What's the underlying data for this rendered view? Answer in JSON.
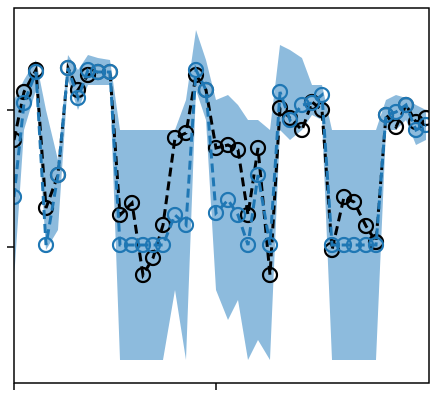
{
  "chart_data": {
    "type": "line",
    "x": [
      0,
      10,
      22,
      32,
      44,
      54,
      64,
      74,
      84,
      96,
      106,
      118,
      129,
      139,
      149,
      161,
      172,
      182,
      192,
      202,
      214,
      224,
      234,
      244,
      256,
      266,
      276,
      288,
      298,
      308,
      318,
      330,
      340,
      352,
      362,
      372,
      382,
      392,
      402,
      412
    ],
    "band": {
      "color": "#8dbbdd",
      "upper": [
        147,
        167,
        187,
        137,
        87,
        192,
        177,
        192,
        189,
        187,
        117,
        117,
        117,
        117,
        117,
        117,
        147,
        217,
        187,
        147,
        152,
        142,
        127,
        127,
        117,
        202,
        197,
        189,
        162,
        162,
        117,
        117,
        117,
        117,
        117,
        147,
        152,
        149,
        142,
        137
      ],
      "lower": [
        -33,
        117,
        157,
        -3,
        17,
        167,
        137,
        162,
        162,
        162,
        -113,
        -113,
        -113,
        -113,
        -113,
        -43,
        -113,
        157,
        127,
        -43,
        -73,
        -53,
        -113,
        -93,
        -113,
        117,
        107,
        117,
        132,
        127,
        -113,
        -113,
        -113,
        -113,
        -113,
        117,
        117,
        127,
        102,
        107
      ]
    },
    "series": [
      {
        "color": "#000000",
        "values": [
          107,
          155,
          177,
          39,
          72,
          179,
          157,
          172,
          175,
          175,
          32,
          44,
          -28,
          -11,
          22,
          109,
          114,
          172,
          157,
          99,
          102,
          97,
          32,
          99,
          -28,
          139,
          129,
          117,
          145,
          137,
          -3,
          50,
          45,
          21,
          5,
          132,
          120,
          142,
          125,
          129
        ]
      },
      {
        "color": "#1f77b4",
        "values": [
          50,
          144,
          175,
          2,
          72,
          179,
          149,
          177,
          175,
          175,
          2,
          2,
          2,
          2,
          2,
          32,
          22,
          177,
          157,
          34,
          47,
          32,
          2,
          72,
          2,
          155,
          127,
          142,
          144,
          152,
          2,
          2,
          2,
          2,
          2,
          132,
          135,
          142,
          117,
          122
        ]
      }
    ],
    "xlim": [
      0,
      415
    ],
    "xticks": [
      0,
      202
    ],
    "ylim": [
      -136,
      239
    ],
    "yticks": [
      0,
      137
    ]
  }
}
